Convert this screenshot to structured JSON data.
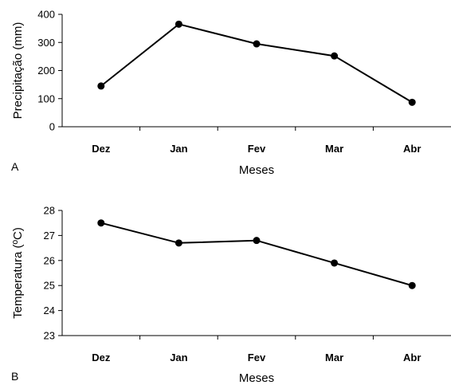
{
  "chart_data": [
    {
      "type": "line",
      "panel_label": "A",
      "categories": [
        "Dez",
        "Jan",
        "Fev",
        "Mar",
        "Abr"
      ],
      "series": [
        {
          "values": [
            145,
            365,
            295,
            252,
            87
          ]
        }
      ],
      "xlabel": "Meses",
      "ylabel": "Precipitação (mm)",
      "ylim": [
        0,
        400
      ],
      "yticks": [
        0,
        100,
        200,
        300,
        400
      ],
      "grid": false,
      "color": "#000000"
    },
    {
      "type": "line",
      "panel_label": "B",
      "categories": [
        "Dez",
        "Jan",
        "Fev",
        "Mar",
        "Abr"
      ],
      "series": [
        {
          "values": [
            27.5,
            26.7,
            26.8,
            25.9,
            25.0
          ]
        }
      ],
      "xlabel": "Meses",
      "ylabel": "Temperatura (ºC)",
      "ylim": [
        23,
        28
      ],
      "yticks": [
        23,
        24,
        25,
        26,
        27,
        28
      ],
      "grid": false,
      "color": "#000000"
    }
  ]
}
